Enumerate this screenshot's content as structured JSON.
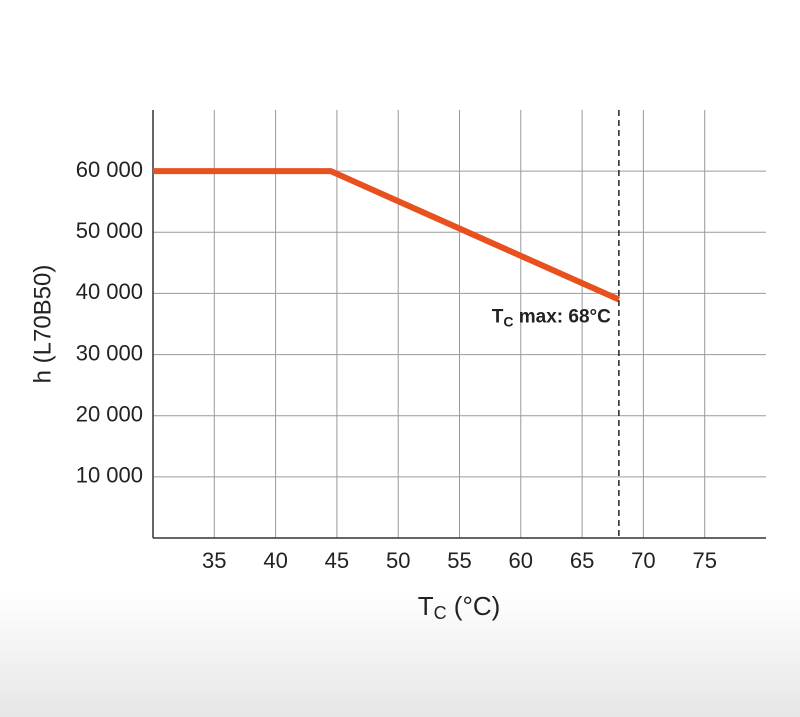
{
  "chart_data": {
    "type": "line",
    "y_label": "h (L70B50)",
    "x_label": {
      "main": "T",
      "sub": "C",
      "rest": " (°C)"
    },
    "x": [
      30,
      44.5,
      68
    ],
    "series": [
      {
        "color": "#e8501e",
        "values": [
          60000,
          60000,
          39000
        ]
      }
    ],
    "xlim": [
      30,
      80
    ],
    "xticks": [
      35,
      40,
      45,
      50,
      55,
      60,
      65,
      70,
      75
    ],
    "ylim": [
      0,
      70000
    ],
    "yticks": [
      {
        "value": 10000,
        "label": "10 000"
      },
      {
        "value": 20000,
        "label": "20 000"
      },
      {
        "value": 30000,
        "label": "30 000"
      },
      {
        "value": 40000,
        "label": "40 000"
      },
      {
        "value": 50000,
        "label": "50 000"
      },
      {
        "value": 60000,
        "label": "60 000"
      }
    ],
    "grid": true,
    "vline": {
      "x": 68,
      "label": {
        "main": "T",
        "sub": "C",
        "rest": " max: 68°C"
      }
    }
  }
}
